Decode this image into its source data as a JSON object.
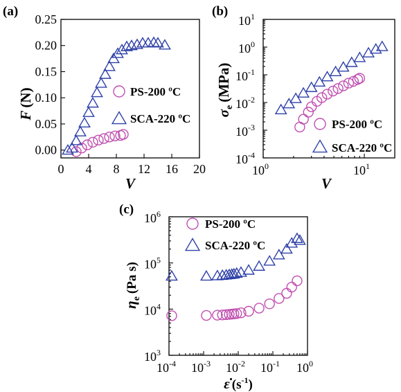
{
  "colors": {
    "ps": "#C04FB0",
    "sca": "#2E40A8"
  },
  "chart_data": [
    {
      "panel": "(a)",
      "type": "scatter",
      "xlabel": "V",
      "ylabel_main": "F",
      "ylabel_unit": "(N)",
      "xlim": [
        0,
        20
      ],
      "ylim": [
        -0.015,
        0.25
      ],
      "xticks": [
        "0",
        "4",
        "8",
        "12",
        "16",
        "20"
      ],
      "xtick_values": [
        0,
        4,
        8,
        12,
        16,
        20
      ],
      "yticks": [
        "0.00",
        "0.05",
        "0.10",
        "0.15",
        "0.20",
        "0.25"
      ],
      "ytick_values": [
        0,
        0.05,
        0.1,
        0.15,
        0.2,
        0.25
      ],
      "series": [
        {
          "name": "PS-200 ºC",
          "marker": "circle",
          "color": "#C04FB0",
          "x": [
            2.2,
            3.0,
            3.8,
            4.6,
            5.4,
            6.2,
            7.0,
            7.8,
            8.6,
            9.0
          ],
          "y": [
            -0.003,
            0.004,
            0.01,
            0.015,
            0.019,
            0.022,
            0.025,
            0.027,
            0.028,
            0.03
          ]
        },
        {
          "name": "SCA-220 ºC",
          "marker": "triangle",
          "color": "#2E40A8",
          "x": [
            1.0,
            1.6,
            2.2,
            2.8,
            3.4,
            4.0,
            4.6,
            5.2,
            5.8,
            6.4,
            7.0,
            7.6,
            8.2,
            8.8,
            9.5,
            10.2,
            11.0,
            11.8,
            12.6,
            13.4,
            14.0,
            15.0
          ],
          "y": [
            0.0,
            0.004,
            0.018,
            0.035,
            0.052,
            0.072,
            0.09,
            0.11,
            0.128,
            0.145,
            0.16,
            0.175,
            0.185,
            0.192,
            0.198,
            0.2,
            0.202,
            0.205,
            0.205,
            0.206,
            0.205,
            0.201
          ]
        }
      ],
      "legend": "right"
    },
    {
      "panel": "(b)",
      "type": "scatter",
      "xlabel": "V",
      "ylabel_main": "σ",
      "ylabel_sub": "e",
      "ylabel_unit": "(MPa)",
      "xscale": "log",
      "yscale": "log",
      "xlim": [
        1,
        20
      ],
      "ylim": [
        0.0001,
        10
      ],
      "xticks": [
        {
          "base": "10",
          "exp": "0"
        },
        {
          "base": "10",
          "exp": "1"
        }
      ],
      "xtick_values": [
        1,
        10
      ],
      "yticks": [
        {
          "base": "10",
          "exp": "-4"
        },
        {
          "base": "10",
          "exp": "-3"
        },
        {
          "base": "10",
          "exp": "-2"
        },
        {
          "base": "10",
          "exp": "-1"
        },
        {
          "base": "10",
          "exp": "0"
        },
        {
          "base": "10",
          "exp": "1"
        }
      ],
      "ytick_values": [
        0.0001,
        0.001,
        0.01,
        0.1,
        1,
        10
      ],
      "series": [
        {
          "name": "PS-200 ºC",
          "marker": "circle",
          "color": "#C04FB0",
          "x": [
            2.3,
            2.5,
            2.8,
            3.0,
            3.4,
            3.8,
            4.3,
            4.9,
            5.5,
            6.2,
            7.0,
            7.8,
            8.6,
            9.0
          ],
          "y": [
            0.0013,
            0.0025,
            0.0045,
            0.007,
            0.011,
            0.015,
            0.02,
            0.026,
            0.032,
            0.04,
            0.05,
            0.058,
            0.068,
            0.075
          ]
        },
        {
          "name": "SCA-220 ºC",
          "marker": "triangle",
          "color": "#2E40A8",
          "x": [
            1.5,
            1.8,
            2.1,
            2.5,
            3.0,
            3.6,
            4.3,
            5.2,
            6.2,
            7.5,
            9.0,
            11.0,
            13.0,
            15.0
          ],
          "y": [
            0.0055,
            0.009,
            0.014,
            0.022,
            0.035,
            0.055,
            0.085,
            0.13,
            0.19,
            0.28,
            0.42,
            0.62,
            0.85,
            1.05
          ]
        }
      ],
      "legend": "bottom-right"
    },
    {
      "panel": "(c)",
      "type": "scatter",
      "xlabel_main": "ε̇",
      "xlabel_unit": "(s",
      "xlabel_exp": "-1",
      "xlabel_close": ")",
      "ylabel_main": "η",
      "ylabel_sub": "e",
      "ylabel_unit": "(Pa s)",
      "xscale": "log",
      "yscale": "log",
      "xlim": [
        0.0001,
        1
      ],
      "ylim": [
        1000,
        1000000
      ],
      "xticks": [
        {
          "base": "10",
          "exp": "-4"
        },
        {
          "base": "10",
          "exp": "-3"
        },
        {
          "base": "10",
          "exp": "-2"
        },
        {
          "base": "10",
          "exp": "-1"
        },
        {
          "base": "10",
          "exp": "0"
        }
      ],
      "xtick_values": [
        0.0001,
        0.001,
        0.01,
        0.1,
        1
      ],
      "yticks": [
        {
          "base": "10",
          "exp": "3"
        },
        {
          "base": "10",
          "exp": "4"
        },
        {
          "base": "10",
          "exp": "5"
        },
        {
          "base": "10",
          "exp": "6"
        }
      ],
      "ytick_values": [
        1000,
        10000,
        100000,
        1000000
      ],
      "series": [
        {
          "name": "PS-200 ºC",
          "marker": "circle",
          "color": "#C04FB0",
          "x": [
            0.00012,
            0.0012,
            0.0025,
            0.0035,
            0.0045,
            0.0055,
            0.0065,
            0.0075,
            0.009,
            0.012,
            0.02,
            0.04,
            0.08,
            0.15,
            0.25,
            0.35,
            0.5
          ],
          "y": [
            7200,
            7300,
            7400,
            7500,
            7600,
            7700,
            7800,
            7900,
            8000,
            8300,
            9000,
            10500,
            13000,
            17000,
            22000,
            30000,
            41000
          ]
        },
        {
          "name": "SCA-220 ºC",
          "marker": "triangle",
          "color": "#2E40A8",
          "x": [
            0.00012,
            0.0012,
            0.0025,
            0.0035,
            0.0045,
            0.0055,
            0.0065,
            0.0075,
            0.009,
            0.012,
            0.02,
            0.04,
            0.08,
            0.15,
            0.25,
            0.35,
            0.5,
            0.6
          ],
          "y": [
            52000,
            52000,
            53000,
            54000,
            55000,
            56000,
            57000,
            58000,
            60000,
            63000,
            70000,
            85000,
            110000,
            150000,
            200000,
            270000,
            340000,
            310000
          ]
        }
      ],
      "legend": "top"
    }
  ]
}
